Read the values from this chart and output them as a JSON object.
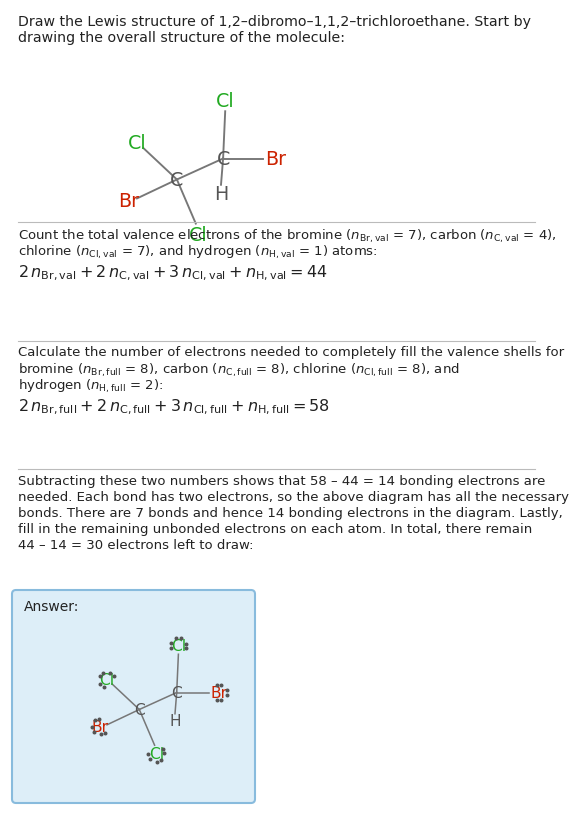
{
  "bg_color": "#ffffff",
  "answer_bg": "#ddeef8",
  "answer_border": "#88bbdd",
  "cl_color": "#22aa22",
  "br_color": "#cc2200",
  "c_color": "#555555",
  "h_color": "#555555",
  "text_color": "#222222",
  "line_color": "#777777",
  "separator_color": "#bbbbbb",
  "answer_label": "Answer:",
  "title_line1": "Draw the Lewis structure of 1,2–dibromo–1,1,2–trichloroethane. Start by",
  "title_line2": "drawing the overall structure of the molecule:",
  "s1_line1": "Count the total valence electrons of the bromine (",
  "s1_math1": "n_{Br,val} = 7",
  "s2_line1": "Calculate the number of electrons needed to completely fill the valence shells for",
  "s3_line1": "Subtracting these two numbers shows that 58 – 44 = 14 bonding electrons are",
  "s3_line2": "needed. Each bond has two electrons, so the above diagram has all the necessary",
  "s3_line3": "bonds. There are 7 bonds and hence 14 bonding electrons in the diagram. Lastly,",
  "s3_line4": "fill in the remaining unbonded electrons on each atom. In total, there remain",
  "s3_line5": "44 – 14 = 30 electrons left to draw:"
}
